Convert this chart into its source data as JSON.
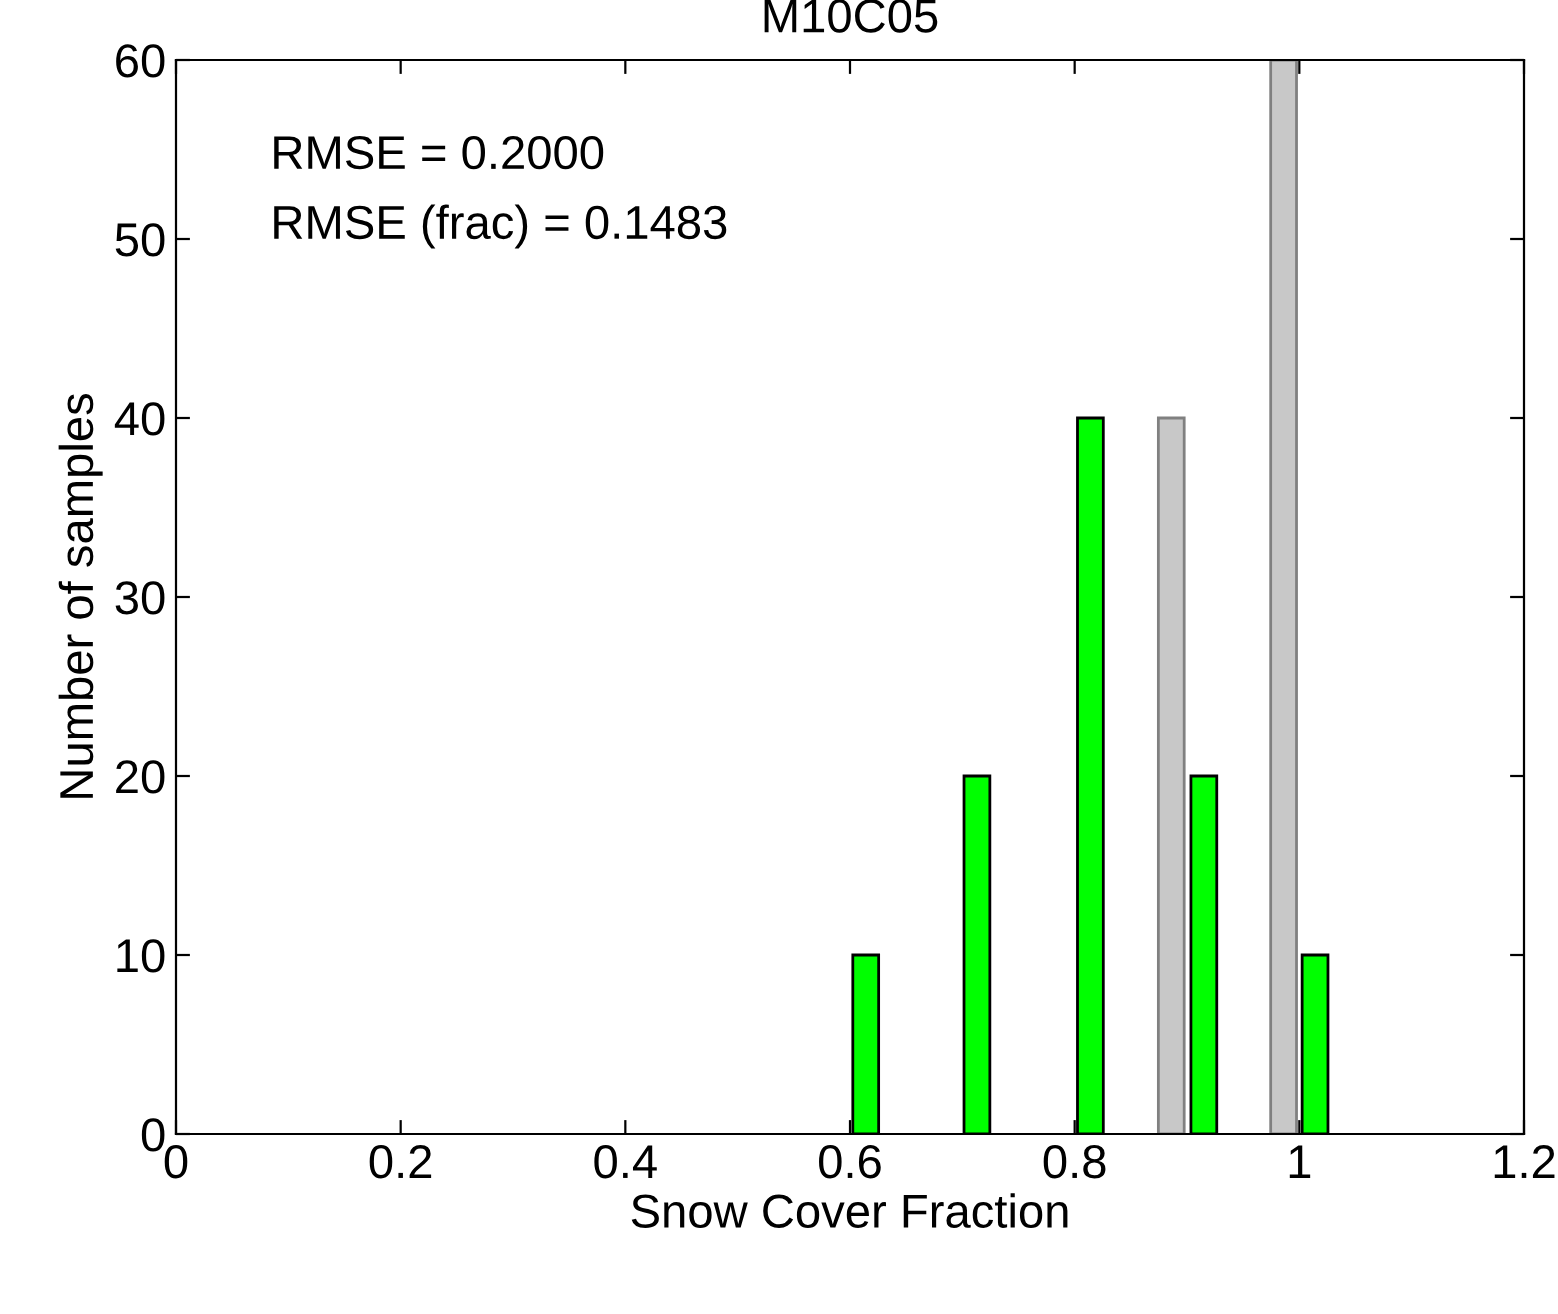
{
  "chart_data": {
    "type": "bar",
    "title": "M10C05",
    "xlabel": "Snow Cover Fraction",
    "ylabel": "Number of samples",
    "annotations": [
      "RMSE = 0.2000",
      "RMSE (frac) = 0.1483"
    ],
    "series": [
      {
        "color": "#c8c8c8",
        "x": [
          0.886,
          0.986
        ],
        "values": [
          40,
          60
        ]
      },
      {
        "color": "#00ff00",
        "x": [
          0.614,
          0.713,
          0.814,
          0.915,
          1.014
        ],
        "values": [
          10,
          20,
          40,
          20,
          10
        ]
      }
    ],
    "xlim": [
      0,
      1.2
    ],
    "xticks": [
      0,
      0.2,
      0.4,
      0.6,
      0.8,
      1,
      1.2
    ],
    "ylim": [
      0,
      60
    ],
    "yticks": [
      0,
      10,
      20,
      30,
      40,
      50,
      60
    ],
    "grid": false,
    "legend": false
  }
}
